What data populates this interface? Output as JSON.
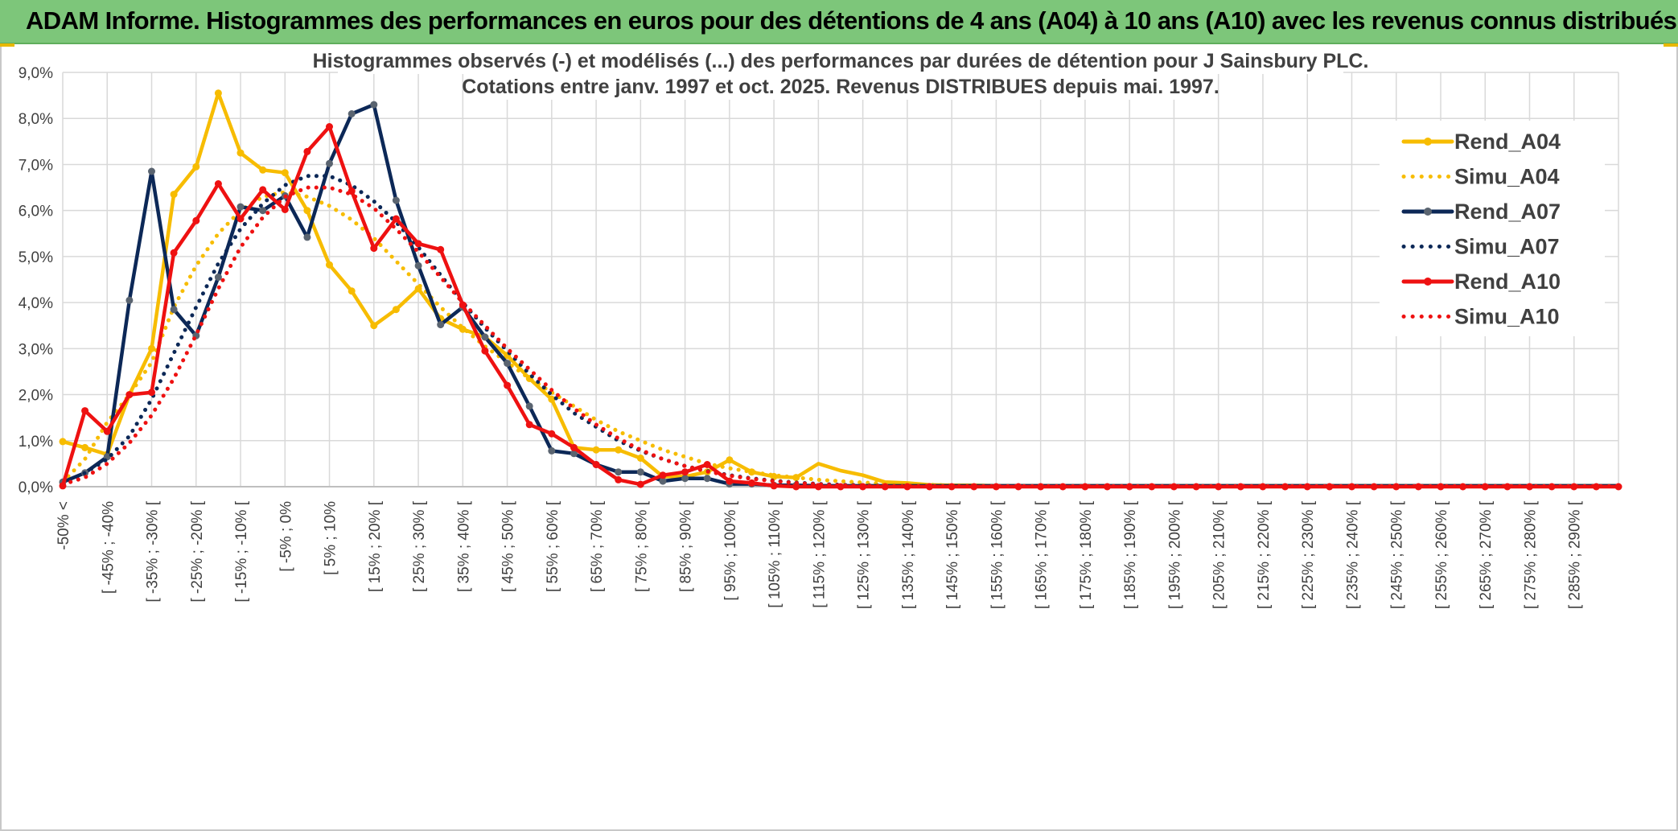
{
  "banner": {
    "title": "ADAM Informe. Histogrammes des performances en euros pour des détentions de 4 ans (A04) à 10 ans (A10) avec les revenus connus distribués"
  },
  "colors": {
    "banner_bg": "#7dc67a",
    "a04": "#f7bc00",
    "a07": "#0c2857",
    "a07_marker": "#5a6470",
    "a10": "#ee1111",
    "grid": "#d9d9d9"
  },
  "chart_data": {
    "type": "line",
    "title_line1": "Histogrammes observés (-) et modélisés (...) des performances par durées de détention pour J Sainsbury PLC.",
    "title_line2": "Cotations entre janv. 1997 et oct. 2025. Revenus DISTRIBUES depuis mai. 1997.",
    "xlabel": "",
    "ylabel": "",
    "ylim": [
      0,
      9
    ],
    "yticks": [
      "0,0%",
      "1,0%",
      "2,0%",
      "3,0%",
      "4,0%",
      "5,0%",
      "6,0%",
      "7,0%",
      "8,0%",
      "9,0%"
    ],
    "grid": true,
    "legend_position": "right",
    "x_labels": [
      "-50% <",
      "[ -45% ; -40%",
      "[ -35% ; -30% [",
      "[ -25% ; -20% [",
      "[ -15% ; -10% [",
      "[ -5% ; 0%",
      "[ 5% ; 10%",
      "[ 15% ; 20% [",
      "[ 25% ; 30% [",
      "[ 35% ; 40% [",
      "[ 45% ; 50% [",
      "[ 55% ; 60% [",
      "[ 65% ; 70% [",
      "[ 75% ; 80% [",
      "[ 85% ; 90% [",
      "[ 95% ; 100% [",
      "[ 105% ; 110% [",
      "[ 115% ; 120% [",
      "[ 125% ; 130% [",
      "[ 135% ; 140% [",
      "[ 145% ; 150% [",
      "[ 155% ; 160% [",
      "[ 165% ; 170% [",
      "[ 175% ; 180% [",
      "[ 185% ; 190% [",
      "[ 195% ; 200% [",
      "[ 205% ; 210% [",
      "[ 215% ; 220% [",
      "[ 225% ; 230% [",
      "[ 235% ; 240% [",
      "[ 245% ; 250% [",
      "[ 255% ; 260% [",
      "[ 265% ; 270% [",
      "[ 275% ; 280% [",
      "[ 285% ; 290% ["
    ],
    "bins_count": 71,
    "series": [
      {
        "name": "Rend_A04",
        "style": "solid",
        "color": "#f7bc00",
        "values": [
          0.98,
          0.85,
          0.7,
          2.0,
          3.0,
          6.35,
          6.95,
          8.55,
          7.25,
          6.88,
          6.82,
          6.0,
          4.82,
          4.25,
          3.5,
          3.85,
          4.3,
          3.65,
          3.42,
          3.25,
          2.85,
          2.35,
          1.9,
          0.85,
          0.8,
          0.8,
          0.62,
          0.22,
          0.22,
          0.32,
          0.58,
          0.32,
          0.22,
          0.2,
          0.5,
          0.35,
          0.25,
          0.1,
          0.08,
          0.04,
          0.03,
          0.03,
          0.02,
          0.02,
          0.02,
          0.02,
          0.02,
          0.02,
          0.02,
          0.02,
          0.02,
          0.02,
          0.02,
          0.02,
          0.02,
          0.02,
          0.02,
          0.02,
          0.02,
          0.02,
          0.02,
          0.02,
          0.02,
          0.02,
          0.02,
          0.02,
          0.02,
          0.02,
          0.02,
          0.02,
          0.02
        ]
      },
      {
        "name": "Simu_A04",
        "style": "dotted",
        "color": "#f7bc00",
        "values": [
          0.1,
          0.6,
          1.4,
          2.0,
          2.7,
          3.9,
          4.8,
          5.5,
          6.0,
          6.3,
          6.4,
          6.3,
          6.1,
          5.8,
          5.4,
          4.9,
          4.4,
          3.9,
          3.45,
          3.05,
          2.7,
          2.35,
          2.05,
          1.75,
          1.45,
          1.2,
          1.0,
          0.8,
          0.65,
          0.5,
          0.4,
          0.32,
          0.25,
          0.2,
          0.15,
          0.12,
          0.09,
          0.07,
          0.05,
          0.04,
          0.03,
          0.02,
          0.02,
          0.01,
          0.01,
          0.01,
          0.01,
          0.01,
          0.01,
          0.01,
          0.01,
          0.01,
          0.01,
          0.01,
          0.01,
          0.01,
          0.01,
          0.01,
          0.01,
          0.01,
          0.01,
          0.01,
          0.01,
          0.01,
          0.01,
          0.01,
          0.01,
          0.01,
          0.01,
          0.01,
          0.01
        ]
      },
      {
        "name": "Rend_A07",
        "style": "solid",
        "color": "#0c2857",
        "values": [
          0.1,
          0.3,
          0.65,
          4.05,
          6.85,
          3.85,
          3.28,
          4.55,
          6.08,
          6.0,
          6.32,
          5.42,
          7.02,
          8.1,
          8.3,
          6.22,
          4.8,
          3.52,
          3.9,
          3.25,
          2.68,
          1.75,
          0.78,
          0.72,
          0.48,
          0.32,
          0.32,
          0.12,
          0.18,
          0.18,
          0.06,
          0.06,
          0.03,
          0.03,
          0.02,
          0.02,
          0.02,
          0.02,
          0.02,
          0.02,
          0.02,
          0.02,
          0.02,
          0.02,
          0.02,
          0.02,
          0.02,
          0.02,
          0.02,
          0.02,
          0.02,
          0.02,
          0.02,
          0.02,
          0.02,
          0.02,
          0.02,
          0.02,
          0.02,
          0.02,
          0.02,
          0.02,
          0.02,
          0.02,
          0.02,
          0.02,
          0.02,
          0.02,
          0.02,
          0.02,
          0.02
        ]
      },
      {
        "name": "Simu_A07",
        "style": "dotted",
        "color": "#0c2857",
        "values": [
          0.05,
          0.3,
          0.6,
          1.1,
          1.9,
          2.9,
          3.9,
          4.85,
          5.6,
          6.15,
          6.55,
          6.75,
          6.75,
          6.55,
          6.2,
          5.75,
          5.2,
          4.6,
          4.0,
          3.45,
          2.95,
          2.45,
          2.0,
          1.6,
          1.3,
          1.0,
          0.78,
          0.6,
          0.45,
          0.34,
          0.25,
          0.18,
          0.13,
          0.09,
          0.06,
          0.04,
          0.03,
          0.02,
          0.01,
          0.01,
          0.01,
          0.01,
          0.01,
          0.01,
          0.01,
          0.01,
          0.01,
          0.01,
          0.01,
          0.01,
          0.01,
          0.01,
          0.01,
          0.01,
          0.01,
          0.01,
          0.01,
          0.01,
          0.01,
          0.01,
          0.01,
          0.01,
          0.01,
          0.01,
          0.01,
          0.01,
          0.01,
          0.01,
          0.01,
          0.01,
          0.01
        ]
      },
      {
        "name": "Rend_A10",
        "style": "solid",
        "color": "#ee1111",
        "values": [
          0.02,
          1.65,
          1.2,
          2.0,
          2.05,
          5.08,
          5.78,
          6.58,
          5.82,
          6.45,
          6.02,
          7.28,
          7.82,
          6.42,
          5.18,
          5.82,
          5.28,
          5.15,
          3.95,
          2.95,
          2.2,
          1.35,
          1.15,
          0.85,
          0.48,
          0.15,
          0.05,
          0.25,
          0.32,
          0.48,
          0.12,
          0.08,
          0.02,
          0.0,
          0.0,
          0.0,
          0.0,
          0.0,
          0.0,
          0.0,
          0.0,
          0.0,
          0.0,
          0.0,
          0.0,
          0.0,
          0.0,
          0.0,
          0.0,
          0.0,
          0.0,
          0.0,
          0.0,
          0.0,
          0.0,
          0.0,
          0.0,
          0.0,
          0.0,
          0.0,
          0.0,
          0.0,
          0.0,
          0.0,
          0.0,
          0.0,
          0.0,
          0.0,
          0.0,
          0.0,
          0.0
        ]
      },
      {
        "name": "Simu_A10",
        "style": "dotted",
        "color": "#ee1111",
        "values": [
          0.05,
          0.2,
          0.5,
          0.95,
          1.55,
          2.35,
          3.3,
          4.3,
          5.2,
          5.85,
          6.3,
          6.5,
          6.5,
          6.35,
          6.05,
          5.6,
          5.1,
          4.55,
          4.0,
          3.5,
          3.0,
          2.55,
          2.1,
          1.7,
          1.35,
          1.05,
          0.8,
          0.6,
          0.45,
          0.33,
          0.24,
          0.17,
          0.12,
          0.08,
          0.05,
          0.03,
          0.02,
          0.01,
          0.01,
          0.01,
          0.01,
          0.01,
          0.01,
          0.01,
          0.01,
          0.01,
          0.01,
          0.01,
          0.01,
          0.01,
          0.01,
          0.01,
          0.01,
          0.01,
          0.01,
          0.01,
          0.01,
          0.01,
          0.01,
          0.01,
          0.01,
          0.01,
          0.01,
          0.01,
          0.01,
          0.01,
          0.01,
          0.01,
          0.01,
          0.01,
          0.01
        ]
      }
    ]
  }
}
